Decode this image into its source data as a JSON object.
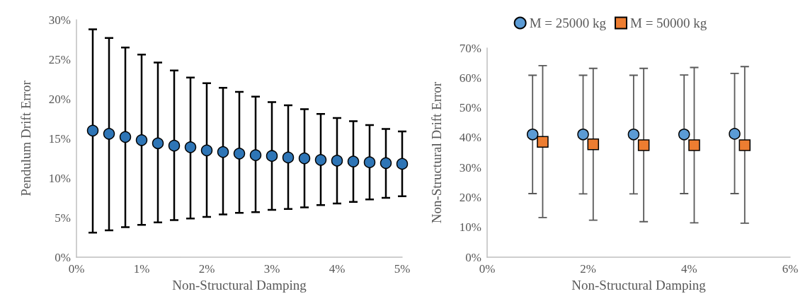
{
  "chart_data": [
    {
      "type": "scatter",
      "xlabel": "Non-Structural Damping",
      "ylabel": "Pendulum Drift Error",
      "marker": "circle",
      "grid": false,
      "legend": false,
      "xlim": [
        0,
        5
      ],
      "xticks": [
        {
          "value": 0,
          "label": "0%"
        },
        {
          "value": 1,
          "label": "1%"
        },
        {
          "value": 2,
          "label": "2%"
        },
        {
          "value": 3,
          "label": "3%"
        },
        {
          "value": 4,
          "label": "4%"
        },
        {
          "value": 5,
          "label": "5%"
        }
      ],
      "ylim": [
        0,
        30
      ],
      "yticks": [
        {
          "value": 0,
          "label": "0%"
        },
        {
          "value": 5,
          "label": "5%"
        },
        {
          "value": 10,
          "label": "10%"
        },
        {
          "value": 15,
          "label": "15%"
        },
        {
          "value": 20,
          "label": "20%"
        },
        {
          "value": 25,
          "label": "25%"
        },
        {
          "value": 30,
          "label": "30%"
        }
      ],
      "series": [
        {
          "color": "#2e75b6",
          "x": [
            0.25,
            0.5,
            0.75,
            1,
            1.25,
            1.5,
            1.75,
            2,
            2.25,
            2.5,
            2.75,
            3,
            3.25,
            3.5,
            3.75,
            4,
            4.25,
            4.5,
            4.75,
            5
          ],
          "values": [
            16.0,
            15.6,
            15.2,
            14.8,
            14.4,
            14.1,
            13.9,
            13.5,
            13.3,
            13.1,
            12.9,
            12.8,
            12.6,
            12.5,
            12.3,
            12.2,
            12.1,
            12.0,
            11.9,
            11.8
          ],
          "errors": [
            [
              3.1,
              28.8
            ],
            [
              3.4,
              27.7
            ],
            [
              3.8,
              26.5
            ],
            [
              4.1,
              25.6
            ],
            [
              4.4,
              24.6
            ],
            [
              4.7,
              23.6
            ],
            [
              4.9,
              22.7
            ],
            [
              5.1,
              22.0
            ],
            [
              5.4,
              21.4
            ],
            [
              5.6,
              20.9
            ],
            [
              5.7,
              20.3
            ],
            [
              6.0,
              19.6
            ],
            [
              6.1,
              19.2
            ],
            [
              6.3,
              18.7
            ],
            [
              6.6,
              18.1
            ],
            [
              6.8,
              17.6
            ],
            [
              7.0,
              17.2
            ],
            [
              7.3,
              16.7
            ],
            [
              7.5,
              16.2
            ],
            [
              7.7,
              15.9
            ]
          ]
        }
      ]
    },
    {
      "type": "scatter",
      "xlabel": "Non-Structural Damping",
      "ylabel": "Non-Structural Drift Error",
      "grid": false,
      "legend": "top",
      "xlim": [
        0,
        6
      ],
      "xticks": [
        {
          "value": 0,
          "label": "0%"
        },
        {
          "value": 2,
          "label": "2%"
        },
        {
          "value": 4,
          "label": "4%"
        },
        {
          "value": 6,
          "label": "6%"
        }
      ],
      "ylim": [
        0,
        70
      ],
      "yticks": [
        {
          "value": 0,
          "label": "0%"
        },
        {
          "value": 10,
          "label": "10%"
        },
        {
          "value": 20,
          "label": "20%"
        },
        {
          "value": 30,
          "label": "30%"
        },
        {
          "value": 40,
          "label": "40%"
        },
        {
          "value": 50,
          "label": "50%"
        },
        {
          "value": 60,
          "label": "60%"
        },
        {
          "value": 70,
          "label": "70%"
        }
      ],
      "series": [
        {
          "name": "M = 25000 kg",
          "color": "#5b9bd5",
          "marker": "circle",
          "x": [
            0.9,
            1.9,
            2.9,
            3.9,
            4.9
          ],
          "values": [
            41.1,
            41.1,
            41.1,
            41.1,
            41.3
          ],
          "errors": [
            [
              21.3,
              60.9
            ],
            [
              21.2,
              60.9
            ],
            [
              21.2,
              60.9
            ],
            [
              21.3,
              61.0
            ],
            [
              21.3,
              61.5
            ]
          ]
        },
        {
          "name": "M = 50000 kg",
          "color": "#ed7d31",
          "marker": "square",
          "x": [
            1.1,
            2.1,
            3.1,
            4.1,
            5.1
          ],
          "values": [
            38.6,
            37.8,
            37.5,
            37.5,
            37.5
          ],
          "errors": [
            [
              13.3,
              64.1
            ],
            [
              12.4,
              63.2
            ],
            [
              11.9,
              63.2
            ],
            [
              11.5,
              63.5
            ],
            [
              11.4,
              63.8
            ]
          ]
        }
      ]
    }
  ]
}
